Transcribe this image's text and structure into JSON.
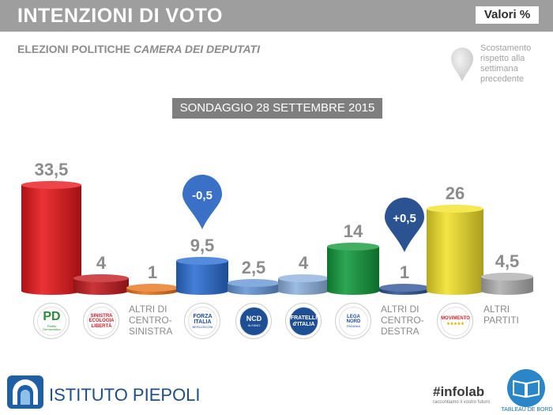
{
  "header": {
    "title": "INTENZIONI DI VOTO",
    "unit_label": "Valori %"
  },
  "subtitle": {
    "prefix": "ELEZIONI POLITICHE",
    "emphasis": "CAMERA DEI DEPUTATI"
  },
  "shift_legend": {
    "text": "Scostamento rispetto alla settimana precedente"
  },
  "survey_label": "SONDAGGIO 28 SETTEMBRE 2015",
  "chart_data": {
    "type": "bar",
    "title": "INTENZIONI DI VOTO",
    "categories": [
      "PD",
      "SEL",
      "ALTRI DI CENTRO-SINISTRA",
      "FORZA ITALIA",
      "NCD",
      "FRATELLI D'ITALIA",
      "LEGA NORD",
      "ALTRI DI CENTRO-DESTRA",
      "MOVIMENTO 5 STELLE",
      "ALTRI PARTITI"
    ],
    "values": [
      33.5,
      4,
      1,
      9.5,
      2.5,
      4,
      14,
      1,
      26,
      4.5
    ],
    "value_labels": [
      "33,5",
      "4",
      "1",
      "9,5",
      "2,5",
      "4",
      "14",
      "1",
      "26",
      "4,5"
    ],
    "colors": [
      "#e8171b",
      "#c41a1e",
      "#e8741c",
      "#2a6ed3",
      "#6596d6",
      "#8fb3e0",
      "#129a3b",
      "#2f5598",
      "#f3e22b",
      "#b0b0b0"
    ],
    "ylim": [
      0,
      35
    ],
    "changes": [
      {
        "category": "FORZA ITALIA",
        "label": "-0,5",
        "color": "#3a70c6"
      },
      {
        "category": "ALTRI DI CENTRO-DESTRA",
        "label": "+0,5",
        "color": "#2b5291"
      }
    ]
  },
  "party_logos": [
    {
      "name": "Partito Democratico",
      "lines": [
        "PD"
      ],
      "caption": "Partito Democratico"
    },
    {
      "name": "Sinistra Ecologia Libertà",
      "lines": [
        "SINISTRA",
        "ECOLOGIA",
        "LIBERTÀ"
      ]
    },
    {
      "name": "Altri di centro-sinistra",
      "text_lines": [
        "ALTRI DI",
        "CENTRO-",
        "SINISTRA"
      ]
    },
    {
      "name": "Forza Italia",
      "lines": [
        "FORZA",
        "ITALIA"
      ],
      "caption": "BERLUSCONI"
    },
    {
      "name": "NCD",
      "lines": [
        "NCD"
      ],
      "caption": "ALFANO"
    },
    {
      "name": "Fratelli d'Italia",
      "lines": [
        "FRATELLI",
        "d'ITALIA"
      ]
    },
    {
      "name": "Lega Nord",
      "lines": [
        "LEGA NORD"
      ],
      "caption": "PADANIA"
    },
    {
      "name": "Altri di centro-destra",
      "text_lines": [
        "ALTRI DI",
        "CENTRO-",
        "DESTRA"
      ]
    },
    {
      "name": "MoVimento 5 Stelle",
      "lines": [
        "MOVIMENTO"
      ],
      "caption": "★★★★★"
    },
    {
      "name": "Altri partiti",
      "text_lines": [
        "ALTRI",
        "PARTITI"
      ]
    }
  ],
  "footer": {
    "brand": "ISTITUTO PIEPOLI",
    "infolab": "#infolab",
    "infolab_tagline": "raccontiamo il vostro futuro",
    "tableau_label": "TABLEAU DE BORD"
  },
  "colors": {
    "header_bg": "#9e9e9e",
    "survey_bg": "#7f7f7f",
    "value_text": "#8c8c8c",
    "brand_blue": "#1f4e85"
  }
}
